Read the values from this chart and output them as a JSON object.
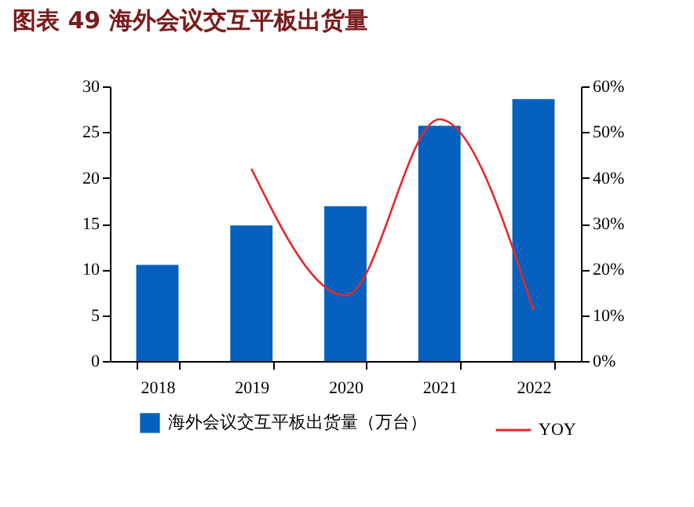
{
  "chart_data": {
    "type": "bar",
    "title": "图表 49 海外会议交互平板出货量",
    "categories": [
      "2018",
      "2019",
      "2020",
      "2021",
      "2022"
    ],
    "series": [
      {
        "name": "海外会议交互平板出货量（万台）",
        "color": "#0561bd",
        "values": [
          10.5,
          14.8,
          16.9,
          25.7,
          28.6
        ]
      },
      {
        "name": "YOY",
        "type": "line",
        "axis": "y2",
        "color": "#e8262c",
        "values": [
          null,
          42,
          14.3,
          52.8,
          11.1
        ]
      }
    ],
    "ylim": [
      0,
      30
    ],
    "yticks": [
      0,
      5,
      10,
      15,
      20,
      25,
      30
    ],
    "y2lim": [
      0,
      60
    ],
    "y2ticks": [
      {
        "value": 0,
        "label": "0%"
      },
      {
        "value": 10,
        "label": "10%"
      },
      {
        "value": 20,
        "label": "20%"
      },
      {
        "value": 30,
        "label": "30%"
      },
      {
        "value": 40,
        "label": "40%"
      },
      {
        "value": 50,
        "label": "50%"
      },
      {
        "value": 60,
        "label": "60%"
      }
    ],
    "grid": false,
    "legend": "bottom",
    "marker": "none",
    "line_style": "solid"
  }
}
